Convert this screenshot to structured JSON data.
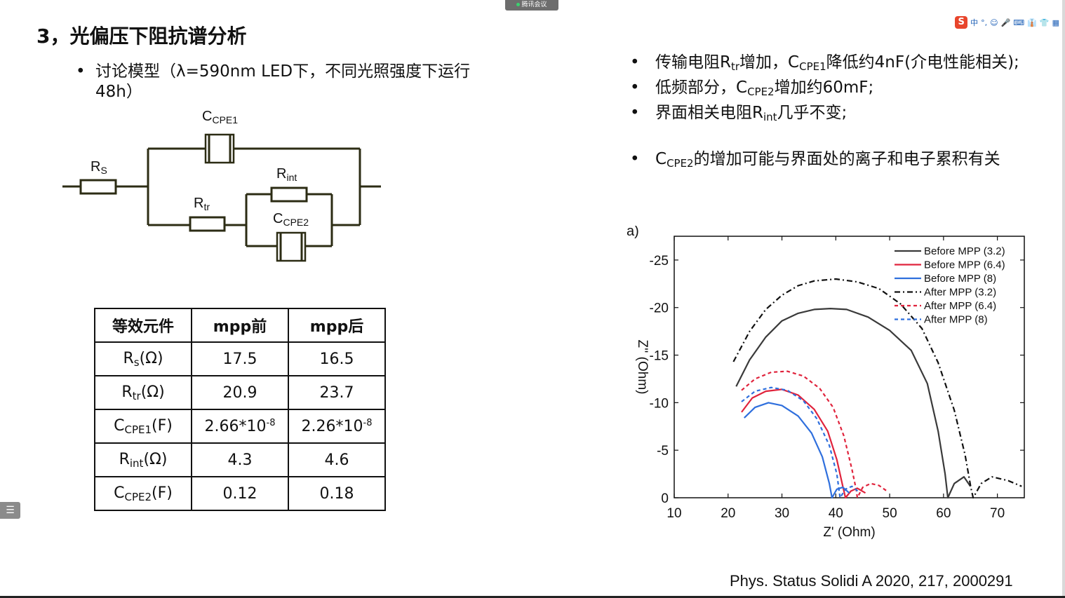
{
  "window": {
    "meeting_tag": "腾讯会议",
    "ime_items": [
      "中",
      "°,",
      "☺",
      "🎤",
      "⌨",
      "👔",
      "👕",
      "▦"
    ],
    "ime_logo": "S"
  },
  "slide": {
    "title": "3，光偏压下阻抗谱分析",
    "left_bullet": "讨论模型（λ=590nm LED下，不同光照强度下运行48h）",
    "circuit_labels": {
      "rs": "R",
      "rs_sub": "S",
      "ccpe1": "C",
      "ccpe1_sub": "CPE1",
      "rint": "R",
      "rint_sub": "int",
      "rtr": "R",
      "rtr_sub": "tr",
      "ccpe2": "C",
      "ccpe2_sub": "CPE2"
    },
    "table": {
      "headers": [
        "等效元件",
        "mpp前",
        "mpp后"
      ],
      "rows": [
        {
          "name": "R",
          "sub": "s",
          "unit": "(Ω)",
          "before": "17.5",
          "after": "16.5"
        },
        {
          "name": "R",
          "sub": "tr",
          "unit": "(Ω)",
          "before": "20.9",
          "after": "23.7"
        },
        {
          "name": "C",
          "sub": "CPE1",
          "unit": "(F)",
          "before": "2.66*10",
          "before_exp": "-8",
          "after": "2.26*10",
          "after_exp": "-8"
        },
        {
          "name": "R",
          "sub": "int",
          "unit": "(Ω)",
          "before": "4.3",
          "after": "4.6"
        },
        {
          "name": "C",
          "sub": "CPE2",
          "unit": "(F)",
          "before": "0.12",
          "after": "0.18"
        }
      ]
    },
    "right_bullets": [
      {
        "parts": [
          "传输电阻R",
          "tr",
          "增加，C",
          "CPE1",
          "降低约4nF(介电性能相关);"
        ]
      },
      {
        "parts": [
          "低频部分，C",
          "CPE2",
          "增加约60mF;"
        ]
      },
      {
        "parts": [
          "界面相关电阻R",
          "int",
          "几乎不变;"
        ]
      },
      {
        "parts": [
          "C",
          "CPE2",
          "的增加可能与界面处的离子和电子累积有关"
        ]
      }
    ],
    "citation": "Phys. Status Solidi A 2020, 217, 2000291",
    "side_icon": "☰"
  },
  "chart_data": {
    "type": "line",
    "panel_label": "a)",
    "xlabel": "Z' (Ohm)",
    "ylabel": "Z'' (Ohm)",
    "xlim": [
      10,
      75
    ],
    "ylim": [
      0,
      -27.5
    ],
    "xticks": [
      "10",
      "20",
      "30",
      "40",
      "50",
      "60",
      "70"
    ],
    "yticks": [
      "0",
      "-5",
      "-10",
      "-15",
      "-20",
      "-25"
    ],
    "legend_position": "top-right",
    "series": [
      {
        "name": "Before MPP (3.2)",
        "color": "#3a3a3a",
        "dash": "solid",
        "points": [
          [
            21.5,
            -11.7
          ],
          [
            24,
            -14.5
          ],
          [
            27,
            -16.9
          ],
          [
            30,
            -18.6
          ],
          [
            33,
            -19.4
          ],
          [
            36,
            -19.8
          ],
          [
            39,
            -19.9
          ],
          [
            42,
            -19.8
          ],
          [
            46,
            -19.0
          ],
          [
            50,
            -17.6
          ],
          [
            54,
            -15.5
          ],
          [
            57,
            -12.0
          ],
          [
            59,
            -7.0
          ],
          [
            60.3,
            -2.5
          ],
          [
            60.8,
            0
          ],
          [
            62,
            -1.5
          ],
          [
            63.8,
            -2.2
          ],
          [
            65,
            -1.2
          ]
        ]
      },
      {
        "name": "Before MPP (6.4)",
        "color": "#e0233c",
        "dash": "solid",
        "points": [
          [
            22.5,
            -9.0
          ],
          [
            24.5,
            -10.5
          ],
          [
            27,
            -11.2
          ],
          [
            30,
            -11.4
          ],
          [
            33,
            -10.8
          ],
          [
            36,
            -9.3
          ],
          [
            38.5,
            -7.0
          ],
          [
            40.2,
            -4.0
          ],
          [
            41.3,
            -1.2
          ],
          [
            41.8,
            0
          ],
          [
            42.8,
            -0.7
          ],
          [
            44,
            -1.0
          ],
          [
            45.5,
            -0.5
          ]
        ]
      },
      {
        "name": "Before MPP (8)",
        "color": "#2f6fdd",
        "dash": "solid",
        "points": [
          [
            23,
            -8.4
          ],
          [
            25,
            -9.5
          ],
          [
            27.5,
            -10.0
          ],
          [
            30,
            -9.7
          ],
          [
            33,
            -8.6
          ],
          [
            35.5,
            -6.8
          ],
          [
            37.5,
            -4.3
          ],
          [
            38.8,
            -1.5
          ],
          [
            39.3,
            0
          ],
          [
            40.2,
            -0.9
          ],
          [
            41.3,
            -1.1
          ],
          [
            42.5,
            -0.5
          ]
        ]
      },
      {
        "name": "After MPP (3.2)",
        "color": "#111111",
        "dash": "8,4,2,4",
        "points": [
          [
            21,
            -14.3
          ],
          [
            24,
            -17.5
          ],
          [
            27,
            -19.8
          ],
          [
            30,
            -21.3
          ],
          [
            33,
            -22.3
          ],
          [
            36,
            -22.8
          ],
          [
            40,
            -23.0
          ],
          [
            44,
            -22.7
          ],
          [
            48,
            -22.0
          ],
          [
            52,
            -20.4
          ],
          [
            56,
            -17.8
          ],
          [
            59,
            -14.2
          ],
          [
            62,
            -9.2
          ],
          [
            64,
            -4.5
          ],
          [
            65.1,
            -1.0
          ],
          [
            65.5,
            0
          ],
          [
            67,
            -1.5
          ],
          [
            69,
            -2.2
          ],
          [
            72,
            -1.8
          ],
          [
            74.5,
            -1.2
          ]
        ]
      },
      {
        "name": "After MPP (6.4)",
        "color": "#e0233c",
        "dash": "5,4",
        "points": [
          [
            22.5,
            -11.3
          ],
          [
            25,
            -12.5
          ],
          [
            28,
            -13.2
          ],
          [
            31,
            -13.3
          ],
          [
            34,
            -12.8
          ],
          [
            37,
            -11.5
          ],
          [
            39.5,
            -9.5
          ],
          [
            41.5,
            -6.5
          ],
          [
            43,
            -3.0
          ],
          [
            43.8,
            -0.8
          ],
          [
            44,
            0
          ],
          [
            45,
            -1.1
          ],
          [
            46.5,
            -1.5
          ],
          [
            48,
            -1.3
          ],
          [
            49.5,
            -0.7
          ]
        ]
      },
      {
        "name": "After MPP (8)",
        "color": "#2f6fdd",
        "dash": "5,4",
        "points": [
          [
            22.5,
            -10.1
          ],
          [
            25,
            -11.2
          ],
          [
            28,
            -11.6
          ],
          [
            31,
            -11.3
          ],
          [
            34,
            -10.2
          ],
          [
            36.5,
            -8.3
          ],
          [
            38.8,
            -5.5
          ],
          [
            40.2,
            -2.5
          ],
          [
            40.8,
            0
          ],
          [
            41.8,
            -0.9
          ],
          [
            43,
            -1.2
          ],
          [
            44.3,
            -0.6
          ]
        ]
      }
    ]
  }
}
